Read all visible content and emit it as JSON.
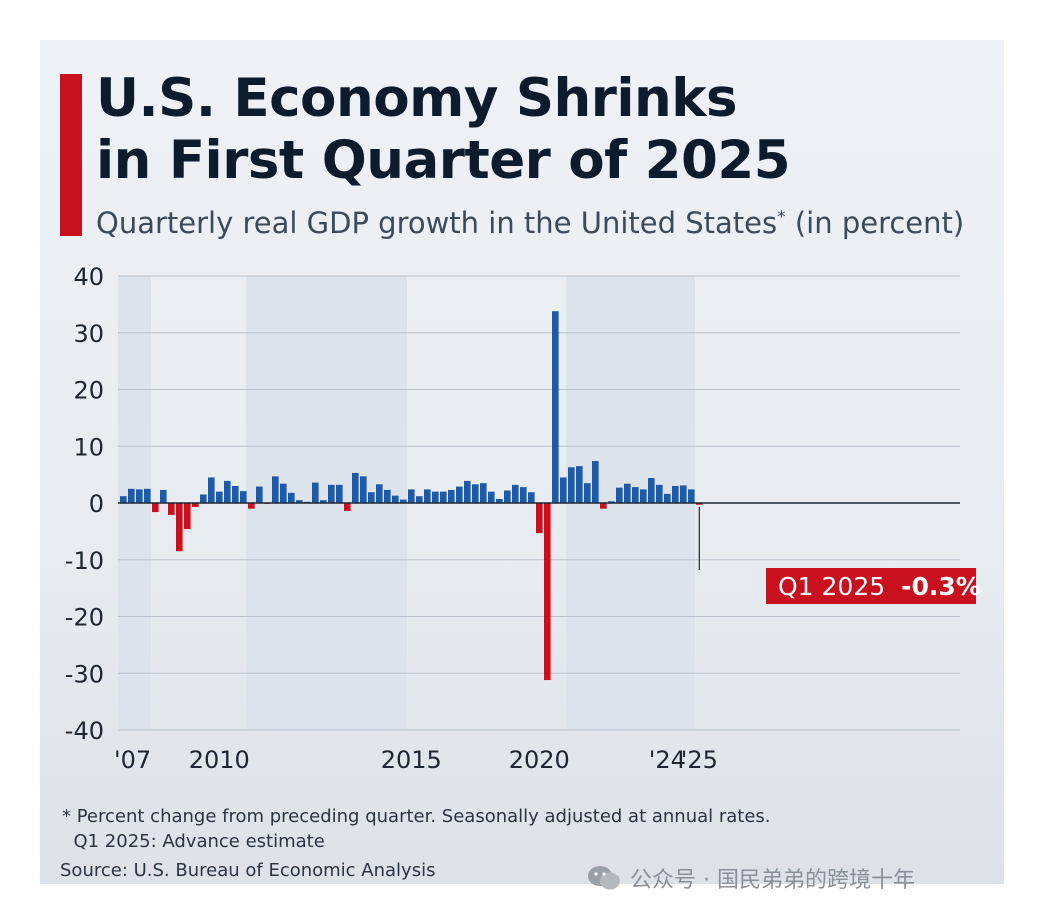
{
  "title_lines": [
    "U.S. Economy Shrinks",
    "in First Quarter of 2025"
  ],
  "subtitle": "Quarterly real GDP growth in the United States",
  "subtitle_mark": "*",
  "subtitle_suffix": "(in percent)",
  "callout": {
    "label": "Q1 2025",
    "value": "-0.3%"
  },
  "footnote_lines": [
    "* Percent change from preceding quarter. Seasonally adjusted at annual rates.",
    "  Q1 2025: Advance estimate"
  ],
  "source": "Source: U.S. Bureau of Economic Analysis",
  "watermark": "公众号 · 国民弟弟的跨境十年",
  "colors": {
    "positive": "#1f5aa6",
    "negative": "#c8101e",
    "accent": "#c8101e",
    "shade": "#dde3ea"
  },
  "chart_data": {
    "type": "bar",
    "ylim": [
      -40,
      40
    ],
    "yticks": [
      40,
      30,
      20,
      10,
      0,
      -10,
      -20,
      -30,
      -40
    ],
    "x_tick_labels": [
      "'07",
      "2010",
      "2015",
      "2020",
      "'24",
      "'25"
    ],
    "shaded_bands": [
      {
        "from": "2007 Q1",
        "to": "2008 Q1"
      },
      {
        "from": "2011 Q1",
        "to": "2016 Q1"
      },
      {
        "from": "2021 Q1",
        "to": "2025 Q1"
      }
    ],
    "categories": [
      "2007 Q1",
      "2007 Q2",
      "2007 Q3",
      "2007 Q4",
      "2008 Q1",
      "2008 Q2",
      "2008 Q3",
      "2008 Q4",
      "2009 Q1",
      "2009 Q2",
      "2009 Q3",
      "2009 Q4",
      "2010 Q1",
      "2010 Q2",
      "2010 Q3",
      "2010 Q4",
      "2011 Q1",
      "2011 Q2",
      "2011 Q3",
      "2011 Q4",
      "2012 Q1",
      "2012 Q2",
      "2012 Q3",
      "2012 Q4",
      "2013 Q1",
      "2013 Q2",
      "2013 Q3",
      "2013 Q4",
      "2014 Q1",
      "2014 Q2",
      "2014 Q3",
      "2014 Q4",
      "2015 Q1",
      "2015 Q2",
      "2015 Q3",
      "2015 Q4",
      "2016 Q1",
      "2016 Q2",
      "2016 Q3",
      "2016 Q4",
      "2017 Q1",
      "2017 Q2",
      "2017 Q3",
      "2017 Q4",
      "2018 Q1",
      "2018 Q2",
      "2018 Q3",
      "2018 Q4",
      "2019 Q1",
      "2019 Q2",
      "2019 Q3",
      "2019 Q4",
      "2020 Q1",
      "2020 Q2",
      "2020 Q3",
      "2020 Q4",
      "2021 Q1",
      "2021 Q2",
      "2021 Q3",
      "2021 Q4",
      "2022 Q1",
      "2022 Q2",
      "2022 Q3",
      "2022 Q4",
      "2023 Q1",
      "2023 Q2",
      "2023 Q3",
      "2023 Q4",
      "2024 Q1",
      "2024 Q2",
      "2024 Q3",
      "2024 Q4",
      "2025 Q1"
    ],
    "values": [
      1.2,
      2.5,
      2.4,
      2.5,
      -1.6,
      2.3,
      -2.1,
      -8.5,
      -4.6,
      -0.7,
      1.5,
      4.5,
      2.0,
      3.9,
      3.0,
      2.1,
      -1.0,
      2.9,
      -0.1,
      4.7,
      3.4,
      1.8,
      0.5,
      0.2,
      3.6,
      0.5,
      3.2,
      3.2,
      -1.4,
      5.3,
      4.7,
      1.9,
      3.3,
      2.3,
      1.3,
      0.6,
      2.4,
      1.2,
      2.4,
      2.0,
      2.0,
      2.3,
      2.9,
      3.9,
      3.3,
      3.5,
      2.0,
      0.7,
      2.2,
      3.2,
      2.8,
      1.9,
      -5.3,
      -31.2,
      33.8,
      4.5,
      6.3,
      6.5,
      3.5,
      7.4,
      -1.0,
      0.3,
      2.7,
      3.4,
      2.8,
      2.4,
      4.4,
      3.2,
      1.6,
      3.0,
      3.1,
      2.4,
      -0.3
    ]
  }
}
